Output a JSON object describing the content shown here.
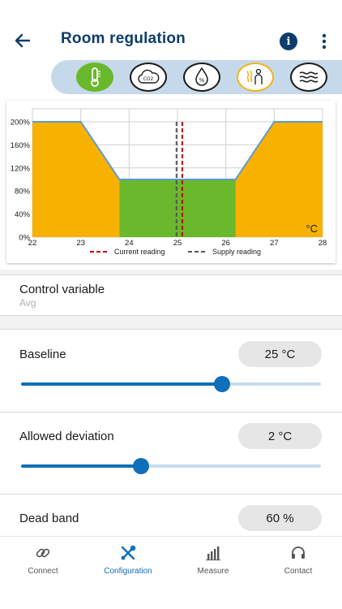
{
  "header": {
    "title": "Room regulation"
  },
  "modes": [
    {
      "name": "temperature",
      "state": "active"
    },
    {
      "name": "co2",
      "state": "normal"
    },
    {
      "name": "humidity",
      "state": "normal"
    },
    {
      "name": "heating",
      "state": "warm"
    },
    {
      "name": "airflow",
      "state": "normal"
    }
  ],
  "chart_data": {
    "type": "area",
    "x_ticks": [
      "22",
      "23",
      "24",
      "25",
      "26",
      "27",
      "28"
    ],
    "y_ticks": [
      "0%",
      "40%",
      "80%",
      "120%",
      "160%",
      "200%"
    ],
    "unit": "°C",
    "xlim": [
      22,
      28
    ],
    "ylim": [
      0,
      200
    ],
    "grid": true,
    "regulation_curve": {
      "x": [
        22,
        23,
        23.8,
        26.2,
        27,
        28
      ],
      "y": [
        200,
        200,
        100,
        100,
        200,
        200
      ]
    },
    "dead_band": [
      23.8,
      26.2
    ],
    "colors": {
      "regulation": "#f7b200",
      "dead_band": "#6ab82b",
      "curve": "#5b9bd5",
      "current": "#c00000",
      "supply": "#555555"
    },
    "markers": [
      {
        "name": "Current reading",
        "x": 25.1
      },
      {
        "name": "Supply reading",
        "x": 24.98
      }
    ]
  },
  "control": {
    "label": "Control variable",
    "value": "Avg"
  },
  "baseline": {
    "label": "Baseline",
    "value": "25 °C",
    "level": 0.67
  },
  "deviation": {
    "label": "Allowed deviation",
    "value": "2 °C",
    "level": 0.4
  },
  "deadband": {
    "label": "Dead band",
    "value": "60 %"
  },
  "tabs": [
    {
      "label": "Connect",
      "icon": "link-icon"
    },
    {
      "label": "Configuration",
      "icon": "tools-icon",
      "active": true
    },
    {
      "label": "Measure",
      "icon": "bar-chart-icon"
    },
    {
      "label": "Contact",
      "icon": "headset-icon"
    }
  ]
}
